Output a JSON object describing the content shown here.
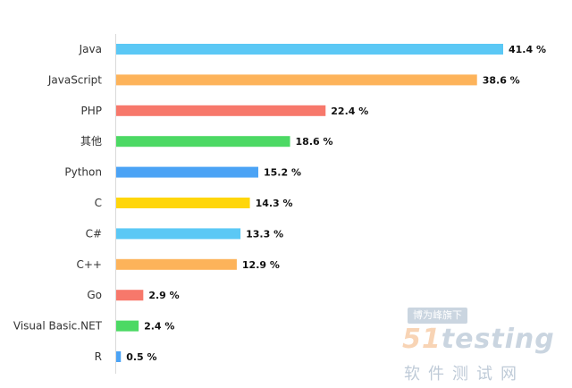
{
  "chart_data": {
    "type": "bar",
    "orientation": "horizontal",
    "categories": [
      "Java",
      "JavaScript",
      "PHP",
      "其他",
      "Python",
      "C",
      "C#",
      "C++",
      "Go",
      "Visual Basic.NET",
      "R"
    ],
    "values": [
      41.4,
      38.6,
      22.4,
      18.6,
      15.2,
      14.3,
      13.3,
      12.9,
      2.9,
      2.4,
      0.5
    ],
    "value_labels": [
      "41.4 %",
      "38.6 %",
      "22.4 %",
      "18.6 %",
      "15.2 %",
      "14.3 %",
      "13.3 %",
      "12.9 %",
      "2.9 %",
      "2.4 %",
      "0.5 %"
    ],
    "colors": [
      "#5bc8f5",
      "#fdb35a",
      "#f7786b",
      "#4cd964",
      "#4ba3f5",
      "#ffd60a",
      "#5bc8f5",
      "#fdb35a",
      "#f7786b",
      "#4cd964",
      "#4ba3f5"
    ],
    "xlim": [
      0,
      41.4
    ],
    "grid": false,
    "legend": "none"
  },
  "watermark": {
    "badge": "博为峰旗下",
    "logo_prefix": "51",
    "logo_main": "testing",
    "subtitle": "软件测试网"
  }
}
